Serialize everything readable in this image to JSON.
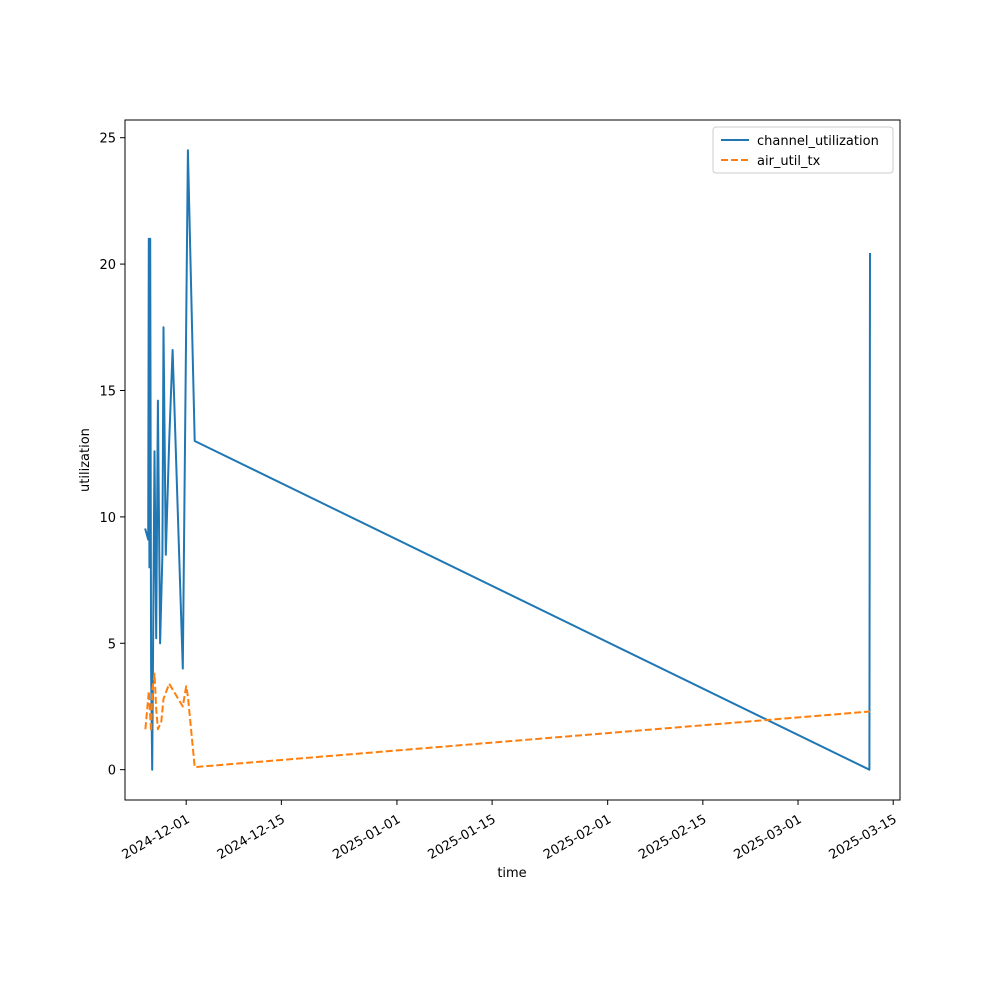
{
  "chart_data": {
    "type": "line",
    "title": "",
    "xlabel": "time",
    "ylabel": "utilization",
    "x_type": "date",
    "xlim": [
      "2024-11-22",
      "2025-03-16"
    ],
    "ylim": [
      -1.2,
      25.7
    ],
    "x_ticks": [
      "2024-12-01",
      "2024-12-15",
      "2025-01-01",
      "2025-01-15",
      "2025-02-01",
      "2025-02-15",
      "2025-03-01",
      "2025-03-15"
    ],
    "y_ticks": [
      0,
      5,
      10,
      15,
      20,
      25
    ],
    "grid": false,
    "legend": "top-right",
    "series": [
      {
        "name": "channel_utilization",
        "color": "#1f77b4",
        "dash": "solid",
        "points": [
          [
            "2024-11-25T00:00",
            9.5
          ],
          [
            "2024-11-25T10:00",
            9.1
          ],
          [
            "2024-11-25T12:00",
            21.0
          ],
          [
            "2024-11-25T14:00",
            8.0
          ],
          [
            "2024-11-25T17:00",
            21.0
          ],
          [
            "2024-11-25T20:00",
            4.0
          ],
          [
            "2024-11-26T00:00",
            0.0
          ],
          [
            "2024-11-26T08:00",
            12.6
          ],
          [
            "2024-11-26T14:00",
            5.2
          ],
          [
            "2024-11-26T20:00",
            14.6
          ],
          [
            "2024-11-27T04:00",
            5.0
          ],
          [
            "2024-11-27T12:00",
            8.5
          ],
          [
            "2024-11-27T16:00",
            17.5
          ],
          [
            "2024-11-28T00:00",
            8.5
          ],
          [
            "2024-11-28T12:00",
            13.0
          ],
          [
            "2024-11-29T00:00",
            16.6
          ],
          [
            "2024-11-30T12:00",
            4.0
          ],
          [
            "2024-12-01T06:00",
            24.5
          ],
          [
            "2024-12-02T06:00",
            13.0
          ],
          [
            "2025-03-11T12:00",
            0.0
          ],
          [
            "2025-03-11T14:00",
            20.4
          ]
        ]
      },
      {
        "name": "air_util_tx",
        "color": "#ff7f0e",
        "dash": "dashed",
        "points": [
          [
            "2024-11-25T00:00",
            1.6
          ],
          [
            "2024-11-25T12:00",
            3.1
          ],
          [
            "2024-11-25T20:00",
            1.5
          ],
          [
            "2024-11-26T00:00",
            3.1
          ],
          [
            "2024-11-26T08:00",
            3.8
          ],
          [
            "2024-11-26T14:00",
            2.4
          ],
          [
            "2024-11-26T20:00",
            1.6
          ],
          [
            "2024-11-27T08:00",
            1.9
          ],
          [
            "2024-11-27T16:00",
            2.8
          ],
          [
            "2024-11-28T12:00",
            3.4
          ],
          [
            "2024-11-30T12:00",
            2.5
          ],
          [
            "2024-12-01T00:00",
            3.3
          ],
          [
            "2024-12-01T06:00",
            2.9
          ],
          [
            "2024-12-02T06:00",
            0.1
          ],
          [
            "2025-03-11T14:00",
            2.3
          ]
        ]
      }
    ]
  }
}
